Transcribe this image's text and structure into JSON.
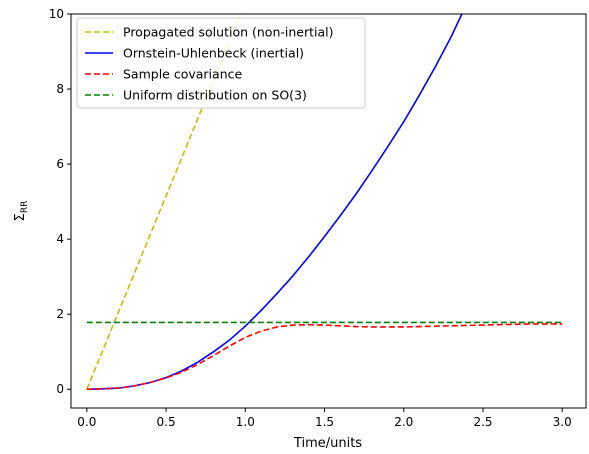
{
  "chart_data": {
    "type": "line",
    "xlabel": "Time/units",
    "ylabel": "Σ_RR",
    "xlim": [
      -0.1,
      3.15
    ],
    "ylim": [
      -0.5,
      10
    ],
    "xticks": [
      0.0,
      0.5,
      1.0,
      1.5,
      2.0,
      2.5,
      3.0
    ],
    "xtick_labels": [
      "0.0",
      "0.5",
      "1.0",
      "1.5",
      "2.0",
      "2.5",
      "3.0"
    ],
    "yticks": [
      0,
      2,
      4,
      6,
      8,
      10
    ],
    "ytick_labels": [
      "0",
      "2",
      "4",
      "6",
      "8",
      "10"
    ],
    "grid": false,
    "legend_position": "top-left",
    "series": [
      {
        "name": "Propagated solution (non-inertial)",
        "color": "#bfbf00",
        "style": "dashed",
        "x": [
          0.0,
          1.0
        ],
        "y": [
          0.0,
          10.3
        ]
      },
      {
        "name": "Ornstein-Uhlenbeck (inertial)",
        "color": "#0000ff",
        "style": "solid",
        "x": [
          0.0,
          0.1,
          0.2,
          0.3,
          0.4,
          0.5,
          0.6,
          0.7,
          0.8,
          0.9,
          1.0,
          1.1,
          1.2,
          1.3,
          1.4,
          1.5,
          1.6,
          1.7,
          1.8,
          1.9,
          2.0,
          2.1,
          2.2,
          2.3,
          2.4
        ],
        "y": [
          0.0,
          0.01,
          0.03,
          0.09,
          0.18,
          0.31,
          0.49,
          0.72,
          1.0,
          1.31,
          1.68,
          2.1,
          2.55,
          3.02,
          3.53,
          4.07,
          4.63,
          5.21,
          5.83,
          6.47,
          7.13,
          7.85,
          8.6,
          9.4,
          10.3
        ]
      },
      {
        "name": "Sample covariance",
        "color": "#ff0000",
        "style": "dashed",
        "x": [
          0.0,
          0.1,
          0.2,
          0.3,
          0.4,
          0.5,
          0.6,
          0.7,
          0.8,
          0.9,
          1.0,
          1.1,
          1.2,
          1.3,
          1.4,
          1.5,
          1.6,
          1.7,
          1.8,
          1.9,
          2.0,
          2.2,
          2.4,
          2.6,
          2.8,
          3.0
        ],
        "y": [
          0.0,
          0.01,
          0.03,
          0.09,
          0.18,
          0.3,
          0.46,
          0.66,
          0.9,
          1.15,
          1.38,
          1.55,
          1.66,
          1.71,
          1.72,
          1.71,
          1.69,
          1.67,
          1.66,
          1.66,
          1.66,
          1.68,
          1.7,
          1.72,
          1.74,
          1.74
        ]
      },
      {
        "name": "Uniform distribution on SO(3)",
        "color": "#008000",
        "style": "dashed",
        "x": [
          0.0,
          3.0
        ],
        "y": [
          1.78,
          1.78
        ]
      }
    ]
  }
}
